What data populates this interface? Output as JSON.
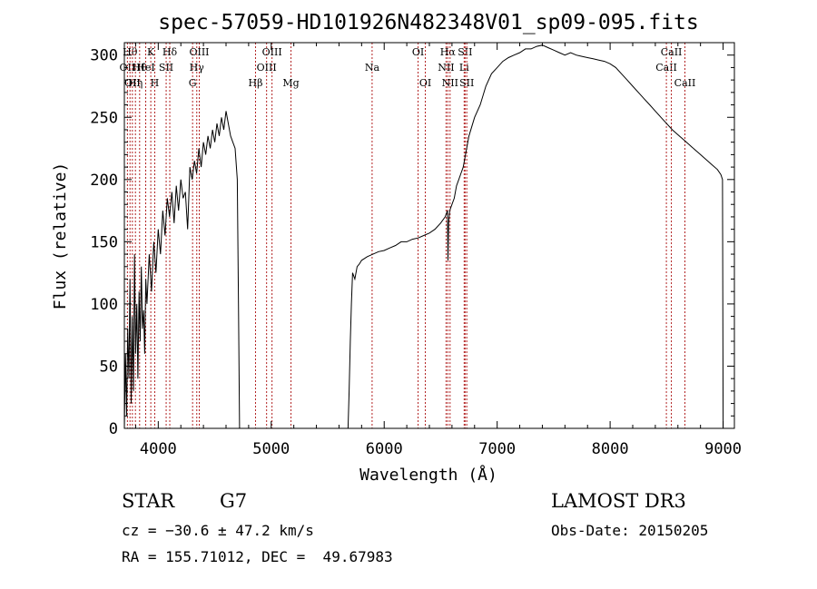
{
  "chart_data": {
    "type": "line",
    "title": "spec-57059-HD101926N482348V01_sp09-095.fits",
    "xlabel": "Wavelength (Å)",
    "ylabel": "Flux (relative)",
    "xlim": [
      3700,
      9100
    ],
    "ylim": [
      0,
      310
    ],
    "xticks": [
      4000,
      5000,
      6000,
      7000,
      8000,
      9000
    ],
    "yticks": [
      0,
      50,
      100,
      150,
      200,
      250,
      300
    ],
    "grid": false,
    "line_color": "#000000",
    "marker_color": "#b22222",
    "series": [
      {
        "x": [
          3700,
          3710,
          3720,
          3730,
          3740,
          3750,
          3760,
          3770,
          3780,
          3790,
          3800,
          3810,
          3820,
          3830,
          3840,
          3850,
          3860,
          3870,
          3880,
          3890,
          3900,
          3920,
          3940,
          3960,
          3980,
          4000,
          4020,
          4040,
          4060,
          4080,
          4100,
          4120,
          4140,
          4160,
          4180,
          4200,
          4220,
          4240,
          4260,
          4280,
          4300,
          4320,
          4340,
          4360,
          4380,
          4400,
          4420,
          4440,
          4460,
          4480,
          4500,
          4520,
          4540,
          4560,
          4580,
          4600,
          4620,
          4640,
          4660,
          4680,
          4700,
          4710,
          4720,
          5680,
          5690,
          5700,
          5710,
          5720,
          5740,
          5760,
          5780,
          5800,
          5850,
          5900,
          5950,
          6000,
          6050,
          6100,
          6150,
          6200,
          6250,
          6300,
          6350,
          6400,
          6450,
          6500,
          6540,
          6560,
          6565,
          6570,
          6580,
          6600,
          6620,
          6640,
          6660,
          6680,
          6700,
          6720,
          6750,
          6800,
          6850,
          6900,
          6950,
          7000,
          7050,
          7100,
          7150,
          7200,
          7250,
          7300,
          7350,
          7400,
          7450,
          7500,
          7550,
          7600,
          7650,
          7700,
          7750,
          7800,
          7850,
          7900,
          7950,
          8000,
          8050,
          8100,
          8150,
          8200,
          8250,
          8300,
          8350,
          8400,
          8450,
          8500,
          8550,
          8600,
          8650,
          8700,
          8750,
          8800,
          8850,
          8900,
          8950,
          8980,
          8995,
          9000
        ],
        "y": [
          0,
          60,
          10,
          80,
          40,
          120,
          20,
          90,
          30,
          140,
          60,
          100,
          40,
          110,
          70,
          130,
          80,
          95,
          60,
          120,
          100,
          140,
          110,
          150,
          125,
          160,
          140,
          175,
          155,
          185,
          170,
          190,
          165,
          195,
          175,
          200,
          185,
          190,
          160,
          210,
          200,
          215,
          205,
          225,
          210,
          230,
          220,
          235,
          225,
          240,
          230,
          245,
          235,
          250,
          240,
          255,
          245,
          235,
          230,
          225,
          200,
          100,
          0,
          0,
          30,
          70,
          100,
          125,
          120,
          130,
          132,
          135,
          138,
          140,
          142,
          143,
          145,
          147,
          150,
          150,
          152,
          153,
          155,
          157,
          160,
          165,
          170,
          175,
          135,
          165,
          175,
          180,
          185,
          195,
          200,
          205,
          210,
          220,
          235,
          250,
          260,
          275,
          285,
          290,
          295,
          298,
          300,
          302,
          305,
          305,
          307,
          308,
          306,
          304,
          302,
          300,
          302,
          300,
          299,
          298,
          297,
          296,
          295,
          293,
          290,
          285,
          280,
          275,
          270,
          265,
          260,
          255,
          250,
          245,
          240,
          236,
          232,
          228,
          224,
          220,
          216,
          212,
          208,
          204,
          200,
          0
        ]
      }
    ],
    "markers": [
      {
        "wavelength": 3727,
        "label": "OII",
        "row": 2
      },
      {
        "wavelength": 3750,
        "label": "Hθ",
        "row": 1
      },
      {
        "wavelength": 3771,
        "label": "OII",
        "row": 3
      },
      {
        "wavelength": 3798,
        "label": "Hη",
        "row": 3
      },
      {
        "wavelength": 3835,
        "label": "Hθ",
        "row": 2
      },
      {
        "wavelength": 3889,
        "label": "HeI",
        "row": 2
      },
      {
        "wavelength": 3934,
        "label": "K",
        "row": 1
      },
      {
        "wavelength": 3969,
        "label": "H",
        "row": 3
      },
      {
        "wavelength": 4070,
        "label": "SII",
        "row": 2
      },
      {
        "wavelength": 4102,
        "label": "Hδ",
        "row": 1
      },
      {
        "wavelength": 4304,
        "label": "G",
        "row": 3
      },
      {
        "wavelength": 4341,
        "label": "Hγ",
        "row": 2
      },
      {
        "wavelength": 4363,
        "label": "OIII",
        "row": 1
      },
      {
        "wavelength": 4861,
        "label": "Hβ",
        "row": 3
      },
      {
        "wavelength": 4959,
        "label": "OIII",
        "row": 2
      },
      {
        "wavelength": 5007,
        "label": "OIII",
        "row": 1
      },
      {
        "wavelength": 5175,
        "label": "Mg",
        "row": 3
      },
      {
        "wavelength": 5893,
        "label": "Na",
        "row": 2
      },
      {
        "wavelength": 6300,
        "label": "OI",
        "row": 1
      },
      {
        "wavelength": 6364,
        "label": "OI",
        "row": 3
      },
      {
        "wavelength": 6548,
        "label": "NII",
        "row": 2
      },
      {
        "wavelength": 6563,
        "label": "Hα",
        "row": 1
      },
      {
        "wavelength": 6583,
        "label": "NII",
        "row": 3
      },
      {
        "wavelength": 6708,
        "label": "Li",
        "row": 2
      },
      {
        "wavelength": 6716,
        "label": "SII",
        "row": 1
      },
      {
        "wavelength": 6731,
        "label": "SII",
        "row": 3
      },
      {
        "wavelength": 8498,
        "label": "CaII",
        "row": 2
      },
      {
        "wavelength": 8542,
        "label": "CaII",
        "row": 1
      },
      {
        "wavelength": 8662,
        "label": "CaII",
        "row": 3
      }
    ]
  },
  "info": {
    "object_class": "STAR",
    "subclass": "G7",
    "survey": "LAMOST DR3",
    "redshift_line": "cz = −30.6 ± 47.2 km/s",
    "obs_date_line": "Obs-Date: 20150205",
    "coords_line": "RA = 155.71012, DEC =  49.67983"
  }
}
